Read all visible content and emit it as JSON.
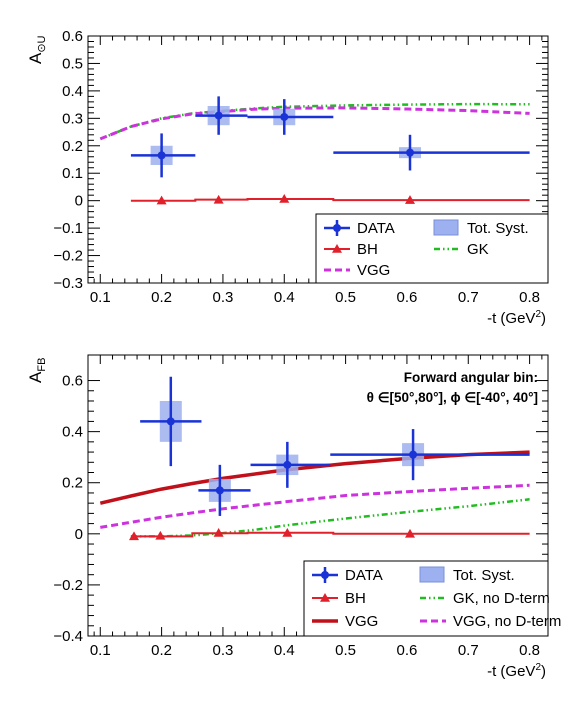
{
  "chart_data": [
    {
      "type": "scatter",
      "ylabel_main": "A",
      "ylabel_sub": "⊙U",
      "xlabel_main": "-t (GeV",
      "xlabel_sup": "2",
      "xlabel_end": ")",
      "xlim": [
        0.08,
        0.83
      ],
      "ylim": [
        -0.3,
        0.6
      ],
      "x_ticks": [
        "0.1",
        "0.2",
        "0.3",
        "0.4",
        "0.5",
        "0.6",
        "0.7",
        "0.8"
      ],
      "y_ticks": [
        "−0.3",
        "−0.2",
        "−0.1",
        "0",
        "0.1",
        "0.2",
        "0.3",
        "0.4",
        "0.5",
        "0.6"
      ],
      "annotations": [],
      "legend": {
        "placement": "bottom-right",
        "entries": [
          {
            "label": "DATA",
            "symbol": "data"
          },
          {
            "label": "Tot. Syst.",
            "symbol": "box"
          },
          {
            "label": "BH",
            "symbol": "bh"
          },
          {
            "label": "GK",
            "symbol": "gk"
          },
          {
            "label": "VGG",
            "symbol": "vgg-dash"
          }
        ]
      },
      "data": [
        {
          "x": 0.2,
          "xlo": 0.15,
          "xhi": 0.255,
          "y": 0.165,
          "yerr": 0.08,
          "syst": 0.035
        },
        {
          "x": 0.293,
          "xlo": 0.255,
          "xhi": 0.34,
          "y": 0.31,
          "yerr": 0.07,
          "syst": 0.035
        },
        {
          "x": 0.4,
          "xlo": 0.34,
          "xhi": 0.48,
          "y": 0.305,
          "yerr": 0.065,
          "syst": 0.03
        },
        {
          "x": 0.605,
          "xlo": 0.48,
          "xhi": 0.8,
          "y": 0.175,
          "yerr": 0.065,
          "syst": 0.02
        }
      ],
      "curves": {
        "bh": [
          [
            0.15,
            0.0
          ],
          [
            0.255,
            0.0
          ],
          [
            0.255,
            0.004
          ],
          [
            0.34,
            0.004
          ],
          [
            0.34,
            0.006
          ],
          [
            0.48,
            0.006
          ],
          [
            0.48,
            0.002
          ],
          [
            0.8,
            0.002
          ]
        ],
        "bh_markers": [
          [
            0.2,
            0.0
          ],
          [
            0.293,
            0.003
          ],
          [
            0.4,
            0.006
          ],
          [
            0.605,
            0.002
          ]
        ],
        "gk": [
          [
            0.1,
            0.225
          ],
          [
            0.15,
            0.27
          ],
          [
            0.2,
            0.3
          ],
          [
            0.25,
            0.318
          ],
          [
            0.3,
            0.327
          ],
          [
            0.35,
            0.336
          ],
          [
            0.4,
            0.342
          ],
          [
            0.5,
            0.347
          ],
          [
            0.6,
            0.35
          ],
          [
            0.7,
            0.352
          ],
          [
            0.8,
            0.351
          ]
        ],
        "vgg": [
          [
            0.1,
            0.225
          ],
          [
            0.15,
            0.27
          ],
          [
            0.2,
            0.298
          ],
          [
            0.25,
            0.316
          ],
          [
            0.3,
            0.325
          ],
          [
            0.35,
            0.333
          ],
          [
            0.4,
            0.337
          ],
          [
            0.5,
            0.338
          ],
          [
            0.6,
            0.334
          ],
          [
            0.7,
            0.328
          ],
          [
            0.8,
            0.318
          ]
        ],
        "vgg_solid": []
      }
    },
    {
      "type": "scatter",
      "ylabel_main": "A",
      "ylabel_sub": "FB",
      "xlabel_main": "-t (GeV",
      "xlabel_sup": "2",
      "xlabel_end": ")",
      "xlim": [
        0.08,
        0.83
      ],
      "ylim": [
        -0.4,
        0.7
      ],
      "x_ticks": [
        "0.1",
        "0.2",
        "0.3",
        "0.4",
        "0.5",
        "0.6",
        "0.7",
        "0.8"
      ],
      "y_ticks": [
        "−0.4",
        "−0.2",
        "0",
        "0.2",
        "0.4",
        "0.6"
      ],
      "annotations": [
        "Forward angular bin:",
        "θ ∈[50°,80°], ϕ ∈[-40°, 40°]"
      ],
      "legend": {
        "placement": "bottom-right",
        "entries": [
          {
            "label": "DATA",
            "symbol": "data"
          },
          {
            "label": "Tot. Syst.",
            "symbol": "box"
          },
          {
            "label": "BH",
            "symbol": "bh"
          },
          {
            "label": "GK, no D-term",
            "symbol": "gk"
          },
          {
            "label": "VGG",
            "symbol": "vgg-solid"
          },
          {
            "label": "VGG, no D-term",
            "symbol": "vgg-dash"
          }
        ]
      },
      "data": [
        {
          "x": 0.215,
          "xlo": 0.165,
          "xhi": 0.265,
          "y": 0.44,
          "yerr": 0.175,
          "syst": 0.08
        },
        {
          "x": 0.295,
          "xlo": 0.26,
          "xhi": 0.345,
          "y": 0.17,
          "yerr": 0.1,
          "syst": 0.045
        },
        {
          "x": 0.405,
          "xlo": 0.345,
          "xhi": 0.475,
          "y": 0.27,
          "yerr": 0.09,
          "syst": 0.04
        },
        {
          "x": 0.61,
          "xlo": 0.475,
          "xhi": 0.8,
          "y": 0.31,
          "yerr": 0.1,
          "syst": 0.045
        }
      ],
      "curves": {
        "bh": [
          [
            0.15,
            -0.01
          ],
          [
            0.25,
            -0.01
          ],
          [
            0.25,
            0.002
          ],
          [
            0.34,
            0.002
          ],
          [
            0.34,
            0.004
          ],
          [
            0.48,
            0.004
          ],
          [
            0.48,
            0.0
          ],
          [
            0.8,
            0.0
          ]
        ],
        "bh_markers": [
          [
            0.155,
            -0.01
          ],
          [
            0.198,
            -0.008
          ],
          [
            0.293,
            0.003
          ],
          [
            0.405,
            0.003
          ],
          [
            0.605,
            0.0
          ]
        ],
        "gk": [
          [
            0.15,
            -0.01
          ],
          [
            0.2,
            -0.01
          ],
          [
            0.25,
            -0.006
          ],
          [
            0.3,
            0.003
          ],
          [
            0.35,
            0.015
          ],
          [
            0.4,
            0.032
          ],
          [
            0.5,
            0.06
          ],
          [
            0.6,
            0.085
          ],
          [
            0.7,
            0.108
          ],
          [
            0.8,
            0.135
          ]
        ],
        "vgg": [
          [
            0.1,
            0.025
          ],
          [
            0.15,
            0.045
          ],
          [
            0.2,
            0.065
          ],
          [
            0.25,
            0.082
          ],
          [
            0.3,
            0.098
          ],
          [
            0.4,
            0.125
          ],
          [
            0.5,
            0.15
          ],
          [
            0.6,
            0.165
          ],
          [
            0.7,
            0.178
          ],
          [
            0.8,
            0.19
          ]
        ],
        "vgg_solid": [
          [
            0.1,
            0.12
          ],
          [
            0.15,
            0.148
          ],
          [
            0.2,
            0.175
          ],
          [
            0.25,
            0.197
          ],
          [
            0.3,
            0.217
          ],
          [
            0.4,
            0.25
          ],
          [
            0.5,
            0.275
          ],
          [
            0.6,
            0.295
          ],
          [
            0.7,
            0.31
          ],
          [
            0.8,
            0.32
          ]
        ]
      }
    }
  ],
  "colors": {
    "data": "#1a33d6",
    "syst": "#9db0ef",
    "bh": "#e0202a",
    "gk": "#22bb22",
    "vgg_dash": "#cc33dd",
    "vgg_solid": "#c0101a",
    "axis": "#000000"
  }
}
